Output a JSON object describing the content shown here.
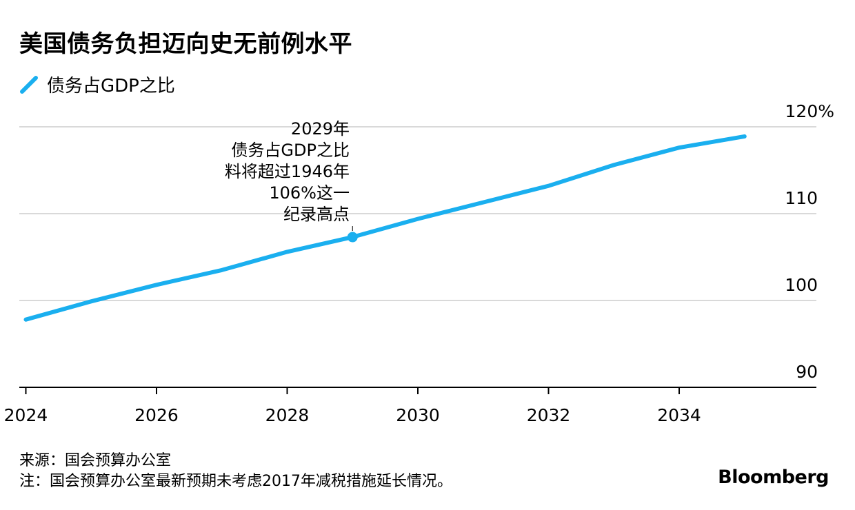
{
  "header": {
    "title": "美国债务负担迈向史无前例水平"
  },
  "annotation": {
    "lines": [
      "2029年",
      "债务占GDP之比",
      "料将超过1946年",
      "106%这一",
      "纪录高点"
    ]
  },
  "footer": {
    "source": "来源：国会预算办公室",
    "note": "注：国会预算办公室最新预期未考虑2017年减税措施延长情况。",
    "logo": "Bloomberg"
  },
  "colors": {
    "series": "#1AAFEF",
    "grid": "#d9d9d9",
    "axis": "#000000"
  },
  "chart_data": {
    "type": "line",
    "title": "美国债务负担迈向史无前例水平",
    "xlabel": "",
    "ylabel": "",
    "xlim": [
      2023.9,
      2036.1
    ],
    "ylim": [
      90,
      120
    ],
    "x_ticks": [
      2024,
      2026,
      2028,
      2030,
      2032,
      2034
    ],
    "x_tick_labels": [
      "2024",
      "2026",
      "2028",
      "2030",
      "2032",
      "2034"
    ],
    "y_ticks": [
      90,
      100,
      110,
      120
    ],
    "y_tick_labels": [
      "90",
      "100",
      "110",
      "120%"
    ],
    "grid": "horizontal",
    "legend_position": "top-left",
    "series": [
      {
        "name": "债务占GDP之比",
        "x": [
          2024,
          2025,
          2026,
          2027,
          2028,
          2029,
          2030,
          2031,
          2032,
          2033,
          2034,
          2035
        ],
        "values": [
          97.8,
          99.9,
          101.8,
          103.5,
          105.6,
          107.3,
          109.4,
          111.3,
          113.2,
          115.6,
          117.6,
          118.9
        ]
      }
    ],
    "highlight": {
      "x": 2029,
      "value": 107.3
    }
  }
}
